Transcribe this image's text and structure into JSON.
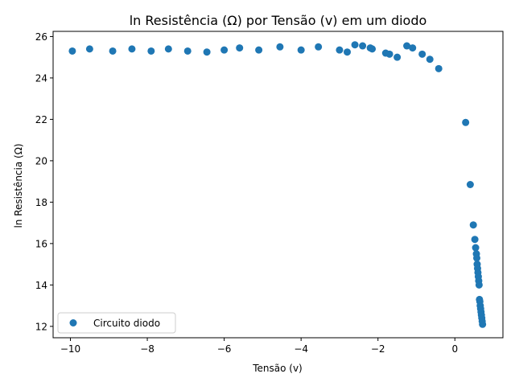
{
  "chart_data": {
    "type": "scatter",
    "title": "ln Resistência (Ω) por Tensão (v) em um diodo",
    "xlabel": "Tensão (v)",
    "ylabel": "ln Resistência (Ω)",
    "xlim": [
      -10.45,
      1.25
    ],
    "ylim": [
      11.45,
      26.25
    ],
    "x_ticks": [
      -10,
      -8,
      -6,
      -4,
      -2,
      0
    ],
    "y_ticks": [
      12,
      14,
      16,
      18,
      20,
      22,
      24,
      26
    ],
    "grid": false,
    "legend": {
      "placement": "lower-left",
      "entries": [
        "Circuito diodo"
      ]
    },
    "colors": {
      "series": "#1f77b4"
    },
    "series": [
      {
        "name": "Circuito diodo",
        "x": [
          -9.95,
          -9.5,
          -8.9,
          -8.4,
          -7.9,
          -7.45,
          -6.95,
          -6.45,
          -6.0,
          -5.6,
          -5.1,
          -4.55,
          -4.0,
          -3.55,
          -3.0,
          -2.8,
          -2.6,
          -2.4,
          -2.2,
          -2.15,
          -1.8,
          -1.7,
          -1.5,
          -1.25,
          -1.1,
          -0.85,
          -0.65,
          -0.42,
          0.28,
          0.4,
          0.48,
          0.52,
          0.54,
          0.56,
          0.57,
          0.58,
          0.59,
          0.6,
          0.61,
          0.62,
          0.63,
          0.64,
          0.65,
          0.66,
          0.67,
          0.68,
          0.69,
          0.7,
          0.71,
          0.72
        ],
        "y": [
          25.3,
          25.4,
          25.3,
          25.4,
          25.3,
          25.4,
          25.3,
          25.25,
          25.35,
          25.45,
          25.35,
          25.5,
          25.35,
          25.5,
          25.35,
          25.25,
          25.6,
          25.55,
          25.45,
          25.4,
          25.2,
          25.15,
          25.0,
          25.55,
          25.45,
          25.15,
          24.9,
          24.45,
          21.85,
          18.85,
          16.9,
          16.2,
          15.8,
          15.5,
          15.3,
          15.0,
          14.8,
          14.6,
          14.4,
          14.2,
          14.0,
          13.3,
          13.2,
          13.0,
          12.85,
          12.7,
          12.55,
          12.4,
          12.25,
          12.1
        ]
      }
    ]
  }
}
